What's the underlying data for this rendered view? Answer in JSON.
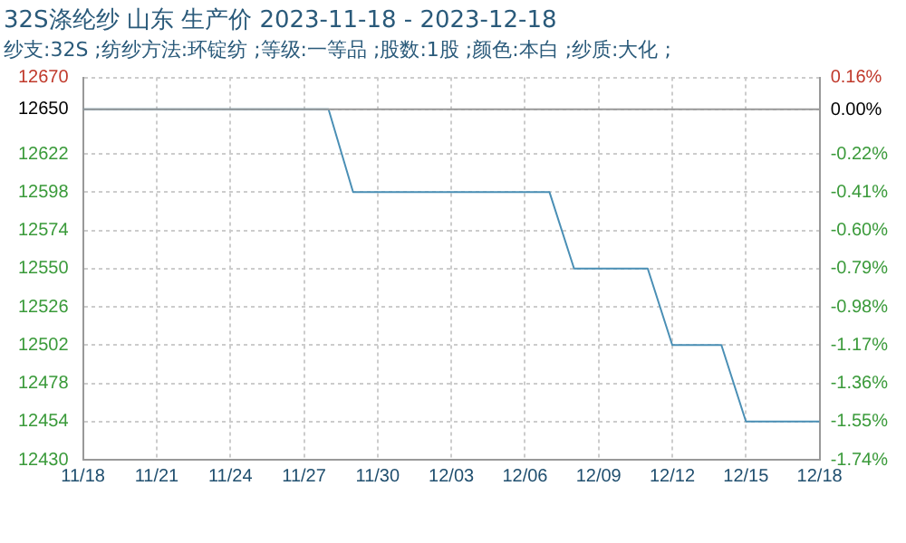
{
  "chart_data": {
    "type": "line",
    "title": "32S涤纶纱 山东 生产价 2023-11-18 - 2023-12-18",
    "subtitle": "纱支:32S ;纺纱方法:环锭纺 ;等级:一等品 ;股数:1股 ;颜色:本白 ;纱质:大化 ;",
    "x": [
      "--11-18",
      "--11-28",
      "--11-29",
      "--12-07",
      "--12-08",
      "--12-11",
      "--12-12",
      "--12-14",
      "--12-15",
      "--12-18"
    ],
    "series": [
      {
        "color": "#4a8fb5",
        "values": [
          12650,
          12650,
          12598,
          12598,
          12550,
          12550,
          12502,
          12502,
          12454,
          12454
        ]
      }
    ],
    "xlim": [
      "--11-18",
      "--12-18"
    ],
    "xticks": [
      {
        "value": "--11-18",
        "label": "11/18"
      },
      {
        "value": "--11-21",
        "label": "11/21"
      },
      {
        "value": "--11-24",
        "label": "11/24"
      },
      {
        "value": "--11-27",
        "label": "11/27"
      },
      {
        "value": "--11-30",
        "label": "11/30"
      },
      {
        "value": "--12-03",
        "label": "12/03"
      },
      {
        "value": "--12-06",
        "label": "12/06"
      },
      {
        "value": "--12-09",
        "label": "12/09"
      },
      {
        "value": "--12-12",
        "label": "12/12"
      },
      {
        "value": "--12-15",
        "label": "12/15"
      },
      {
        "value": "--12-18",
        "label": "12/18"
      }
    ],
    "ylim": [
      12430,
      12670
    ],
    "yticks": [
      12430,
      12454,
      12478,
      12502,
      12526,
      12550,
      12574,
      12598,
      12622,
      12650,
      12670
    ],
    "y2lim": [
      -1.74,
      0.16
    ],
    "y2ticks": [
      {
        "value": -1.74,
        "label": "-1.74%"
      },
      {
        "value": -1.55,
        "label": "-1.55%"
      },
      {
        "value": -1.36,
        "label": "-1.36%"
      },
      {
        "value": -1.17,
        "label": "-1.17%"
      },
      {
        "value": -0.98,
        "label": "-0.98%"
      },
      {
        "value": -0.79,
        "label": "-0.79%"
      },
      {
        "value": -0.6,
        "label": "-0.60%"
      },
      {
        "value": -0.41,
        "label": "-0.41%"
      },
      {
        "value": -0.22,
        "label": "-0.22%"
      },
      {
        "value": 0,
        "label": "0.00%"
      },
      {
        "value": 0.16,
        "label": "0.16%"
      }
    ],
    "ref_lines": [
      {
        "axis": "y",
        "value": 12650,
        "color": "#999999"
      }
    ],
    "grid": true,
    "legend": false,
    "marker": "none",
    "line_style": "solid"
  }
}
